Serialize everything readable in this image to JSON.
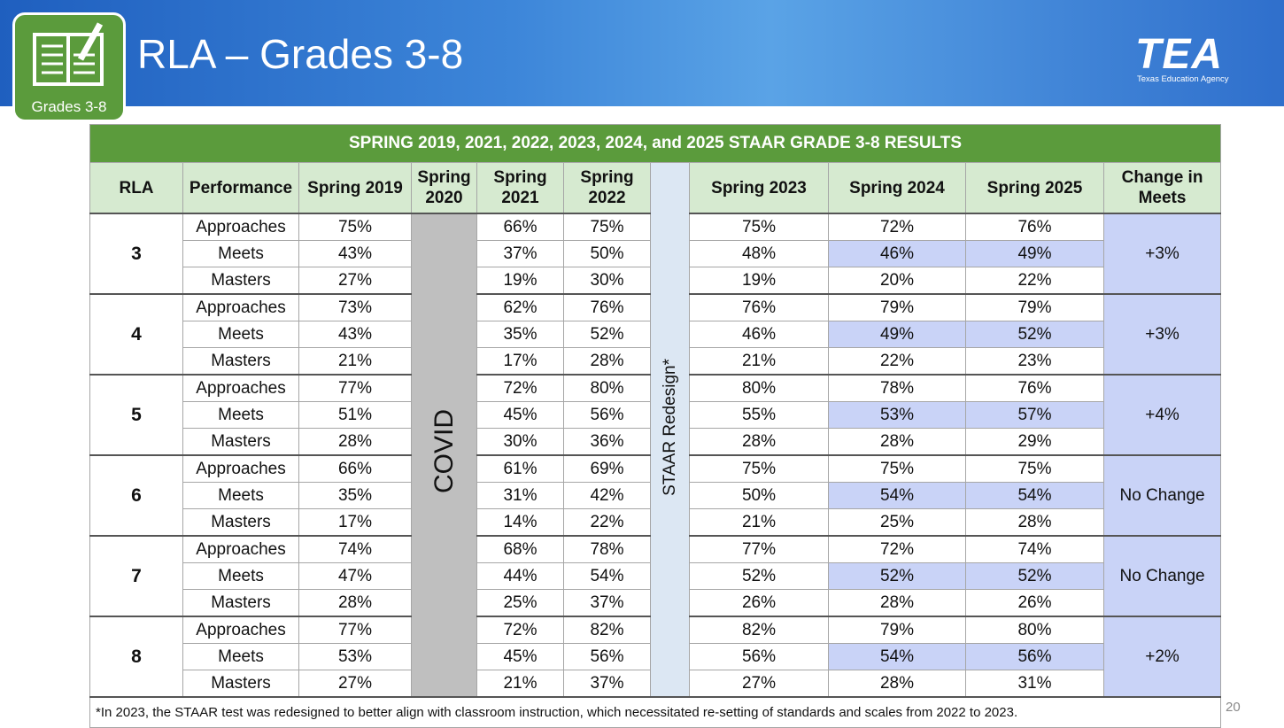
{
  "header": {
    "title": "RLA – Grades 3-8",
    "badge": "Grades 3-8",
    "logo": "TEA",
    "logo_sub": "Texas Education Agency"
  },
  "table": {
    "caption": "SPRING 2019, 2021, 2022, 2023, 2024, and 2025 STAAR GRADE 3-8 RESULTS",
    "headers": [
      "RLA",
      "Performance",
      "Spring 2019",
      "Spring 2020",
      "Spring 2021",
      "Spring 2022",
      "Spring 2023",
      "Spring 2024",
      "Spring 2025",
      "Change in Meets"
    ],
    "covid": "COVID",
    "redesign": "STAAR Redesign*",
    "groups": [
      {
        "grade": "3",
        "change": "+3%",
        "rows": [
          {
            "level": "Approaches",
            "values": [
              "75%",
              "66%",
              "75%",
              "75%",
              "72%",
              "76%"
            ]
          },
          {
            "level": "Meets",
            "values": [
              "43%",
              "37%",
              "50%",
              "48%",
              "46%",
              "49%"
            ]
          },
          {
            "level": "Masters",
            "values": [
              "27%",
              "19%",
              "30%",
              "19%",
              "20%",
              "22%"
            ]
          }
        ]
      },
      {
        "grade": "4",
        "change": "+3%",
        "rows": [
          {
            "level": "Approaches",
            "values": [
              "73%",
              "62%",
              "76%",
              "76%",
              "79%",
              "79%"
            ]
          },
          {
            "level": "Meets",
            "values": [
              "43%",
              "35%",
              "52%",
              "46%",
              "49%",
              "52%"
            ]
          },
          {
            "level": "Masters",
            "values": [
              "21%",
              "17%",
              "28%",
              "21%",
              "22%",
              "23%"
            ]
          }
        ]
      },
      {
        "grade": "5",
        "change": "+4%",
        "rows": [
          {
            "level": "Approaches",
            "values": [
              "77%",
              "72%",
              "80%",
              "80%",
              "78%",
              "76%"
            ]
          },
          {
            "level": "Meets",
            "values": [
              "51%",
              "45%",
              "56%",
              "55%",
              "53%",
              "57%"
            ]
          },
          {
            "level": "Masters",
            "values": [
              "28%",
              "30%",
              "36%",
              "28%",
              "28%",
              "29%"
            ]
          }
        ]
      },
      {
        "grade": "6",
        "change": "No Change",
        "rows": [
          {
            "level": "Approaches",
            "values": [
              "66%",
              "61%",
              "69%",
              "75%",
              "75%",
              "75%"
            ]
          },
          {
            "level": "Meets",
            "values": [
              "35%",
              "31%",
              "42%",
              "50%",
              "54%",
              "54%"
            ]
          },
          {
            "level": "Masters",
            "values": [
              "17%",
              "14%",
              "22%",
              "21%",
              "25%",
              "28%"
            ]
          }
        ]
      },
      {
        "grade": "7",
        "change": "No Change",
        "rows": [
          {
            "level": "Approaches",
            "values": [
              "74%",
              "68%",
              "78%",
              "77%",
              "72%",
              "74%"
            ]
          },
          {
            "level": "Meets",
            "values": [
              "47%",
              "44%",
              "54%",
              "52%",
              "52%",
              "52%"
            ]
          },
          {
            "level": "Masters",
            "values": [
              "28%",
              "25%",
              "37%",
              "26%",
              "28%",
              "26%"
            ]
          }
        ]
      },
      {
        "grade": "8",
        "change": "+2%",
        "rows": [
          {
            "level": "Approaches",
            "values": [
              "77%",
              "72%",
              "82%",
              "82%",
              "79%",
              "80%"
            ]
          },
          {
            "level": "Meets",
            "values": [
              "53%",
              "45%",
              "56%",
              "56%",
              "54%",
              "56%"
            ]
          },
          {
            "level": "Masters",
            "values": [
              "27%",
              "21%",
              "37%",
              "27%",
              "28%",
              "31%"
            ]
          }
        ]
      }
    ],
    "footnote": "*In 2023, the STAAR test was redesigned to better align with classroom instruction, which necessitated re-setting of standards and scales from 2022 to 2023."
  },
  "page_number": "20"
}
